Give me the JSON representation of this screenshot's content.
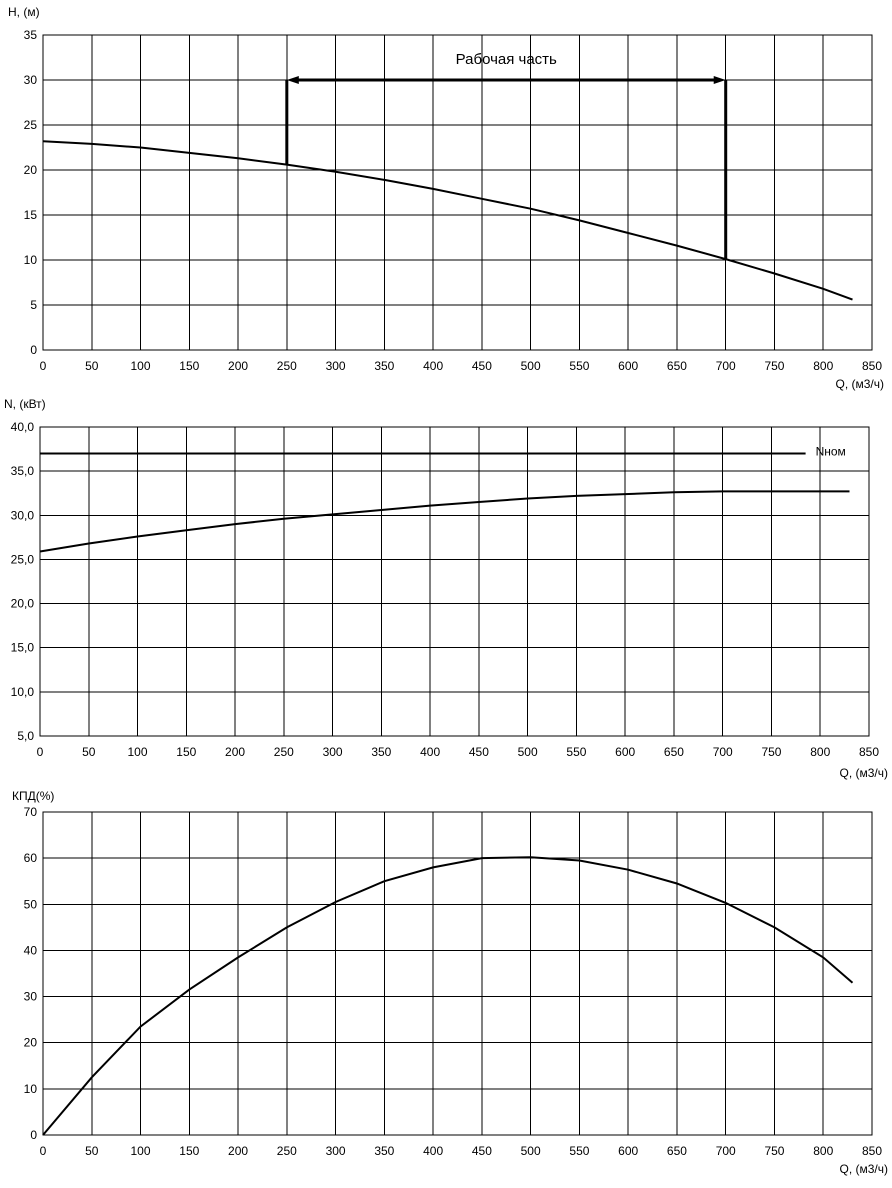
{
  "chart_data": [
    {
      "type": "line",
      "ylabel": "H, (м)",
      "xlabel": "Q, (м3/ч)",
      "xlim": [
        0,
        850
      ],
      "ylim": [
        0,
        35
      ],
      "x_ticks": [
        "0",
        "50",
        "100",
        "150",
        "200",
        "250",
        "300",
        "350",
        "400",
        "450",
        "500",
        "550",
        "600",
        "650",
        "700",
        "750",
        "800",
        "850"
      ],
      "y_ticks": [
        "0",
        "5",
        "10",
        "15",
        "20",
        "25",
        "30",
        "35"
      ],
      "grid": true,
      "series": [
        {
          "x": [
            0,
            50,
            100,
            150,
            200,
            250,
            300,
            350,
            400,
            450,
            500,
            550,
            600,
            650,
            700,
            750,
            800,
            830
          ],
          "values": [
            23.2,
            22.9,
            22.5,
            21.9,
            21.3,
            20.6,
            19.8,
            18.9,
            17.9,
            16.8,
            15.7,
            14.4,
            13.0,
            11.6,
            10.1,
            8.5,
            6.8,
            5.6
          ]
        }
      ],
      "annotation": {
        "label": "Рабочая часть",
        "q_start": 250,
        "q_end": 700,
        "level": 30,
        "start_curve_value": 20.6,
        "end_curve_value": 10.1
      }
    },
    {
      "type": "line",
      "ylabel": "N, (кВт)",
      "xlabel": "Q, (м3/ч)",
      "xlim": [
        0,
        850
      ],
      "ylim": [
        5,
        40
      ],
      "x_ticks": [
        "0",
        "50",
        "100",
        "150",
        "200",
        "250",
        "300",
        "350",
        "400",
        "450",
        "500",
        "550",
        "600",
        "650",
        "700",
        "750",
        "800",
        "850"
      ],
      "y_ticks": [
        "5,0",
        "10,0",
        "15,0",
        "20,0",
        "25,0",
        "30,0",
        "35,0",
        "40,0"
      ],
      "grid": true,
      "series": [
        {
          "x": [
            0,
            50,
            100,
            150,
            200,
            250,
            300,
            350,
            400,
            450,
            500,
            550,
            600,
            650,
            700,
            750,
            800,
            830
          ],
          "values": [
            25.9,
            26.8,
            27.6,
            28.3,
            29.0,
            29.6,
            30.1,
            30.6,
            31.1,
            31.5,
            31.9,
            32.2,
            32.4,
            32.6,
            32.7,
            32.7,
            32.7,
            32.7
          ]
        },
        {
          "name": "Nном",
          "x": [
            0,
            785
          ],
          "values": [
            37,
            37
          ]
        }
      ]
    },
    {
      "type": "line",
      "ylabel": "КПД(%)",
      "xlabel": "Q, (м3/ч)",
      "xlim": [
        0,
        850
      ],
      "ylim": [
        0,
        70
      ],
      "x_ticks": [
        "0",
        "50",
        "100",
        "150",
        "200",
        "250",
        "300",
        "350",
        "400",
        "450",
        "500",
        "550",
        "600",
        "650",
        "700",
        "750",
        "800",
        "850"
      ],
      "y_ticks": [
        "0",
        "10",
        "20",
        "30",
        "40",
        "50",
        "60",
        "70"
      ],
      "grid": true,
      "series": [
        {
          "x": [
            0,
            50,
            100,
            150,
            200,
            250,
            300,
            350,
            400,
            450,
            500,
            550,
            600,
            650,
            700,
            750,
            800,
            830
          ],
          "values": [
            0,
            12.5,
            23.5,
            31.5,
            38.5,
            45,
            50.5,
            55,
            58,
            60,
            60.2,
            59.5,
            57.5,
            54.5,
            50.3,
            45,
            38.5,
            33
          ]
        }
      ]
    }
  ]
}
